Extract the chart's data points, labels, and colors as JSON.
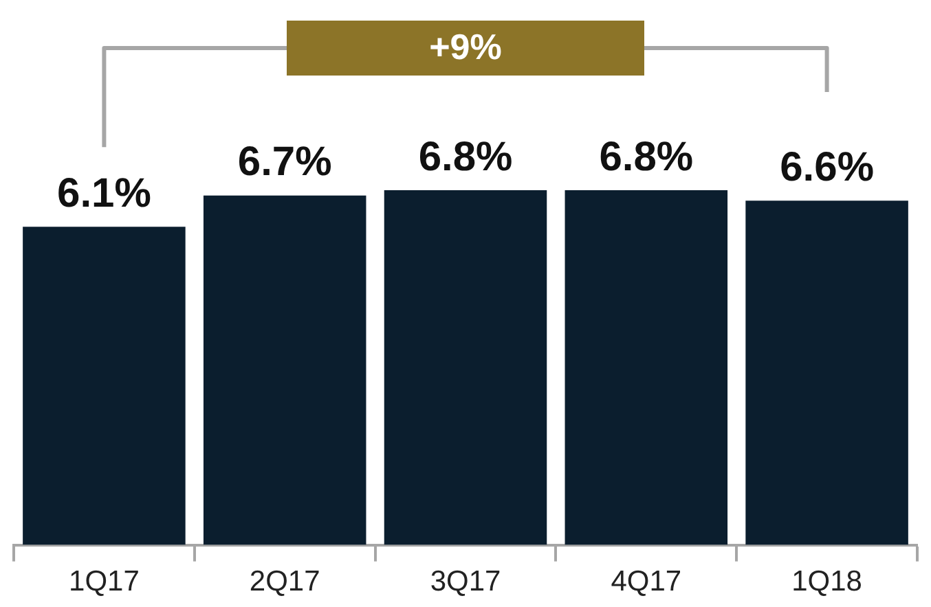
{
  "chart_data": {
    "type": "bar",
    "categories": [
      "1Q17",
      "2Q17",
      "3Q17",
      "4Q17",
      "1Q18"
    ],
    "values": [
      6.1,
      6.7,
      6.8,
      6.8,
      6.6
    ],
    "color": "#0b1e2e",
    "value_labels": [
      "6.1%",
      "6.7%",
      "6.8%",
      "6.8%",
      "6.6%"
    ],
    "annotations": [
      "+9%"
    ],
    "tick_labels": "x",
    "grid": false,
    "legend": false
  }
}
